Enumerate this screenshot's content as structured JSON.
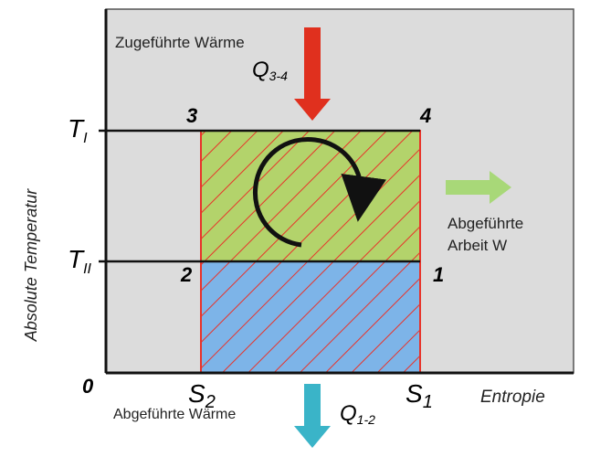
{
  "heat_in": {
    "label": "Zugeführte Wärme",
    "symbol": "Q",
    "subscript": "3-4"
  },
  "temperatures": {
    "upper": {
      "symbol": "T",
      "subscript": "I"
    },
    "lower": {
      "symbol": "T",
      "subscript": "II"
    }
  },
  "corners": [
    "1",
    "2",
    "3",
    "4"
  ],
  "work_out": {
    "line1": "Abgeführte",
    "line2": "Arbeit W"
  },
  "y_axis_label": "Absolute Temperatur",
  "origin": "0",
  "entropies": {
    "left": {
      "symbol": "S",
      "subscript": "2"
    },
    "right": {
      "symbol": "S",
      "subscript": "1"
    }
  },
  "x_axis_label": "Entropie",
  "heat_out": {
    "label": "Abgeführte Wärme",
    "symbol": "Q",
    "subscript": "1-2"
  }
}
